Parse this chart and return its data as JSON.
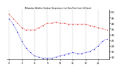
{
  "title": "Milwaukee Weather Outdoor Temperature (vs) Dew Point (Last 24 Hours)",
  "temp_color": "#dd0000",
  "dew_color": "#0000cc",
  "background_color": "#ffffff",
  "grid_color": "#888888",
  "ylim": [
    8,
    52
  ],
  "ytick_vals": [
    10,
    15,
    20,
    25,
    30,
    35,
    40,
    45,
    50
  ],
  "ytick_labels": [
    "10",
    "15",
    "20",
    "25",
    "30",
    "35",
    "40",
    "45",
    "50"
  ],
  "temp_values": [
    48,
    44,
    40,
    36,
    34,
    34,
    34,
    36,
    38,
    40,
    40,
    41,
    40,
    40,
    39,
    39,
    39,
    39,
    39,
    38,
    37,
    36,
    35,
    34
  ],
  "dew_values": [
    44,
    39,
    32,
    24,
    18,
    14,
    11,
    10,
    9,
    9,
    9,
    10,
    11,
    12,
    13,
    14,
    13,
    13,
    14,
    15,
    17,
    20,
    24,
    26
  ],
  "x_values": [
    0,
    1,
    2,
    3,
    4,
    5,
    6,
    7,
    8,
    9,
    10,
    11,
    12,
    13,
    14,
    15,
    16,
    17,
    18,
    19,
    20,
    21,
    22,
    23
  ],
  "xtick_positions": [
    0,
    3,
    6,
    9,
    12,
    15,
    18,
    21
  ],
  "xtick_labels": [
    "0",
    "3",
    "6",
    "9",
    "12",
    "15",
    "18",
    "21"
  ]
}
